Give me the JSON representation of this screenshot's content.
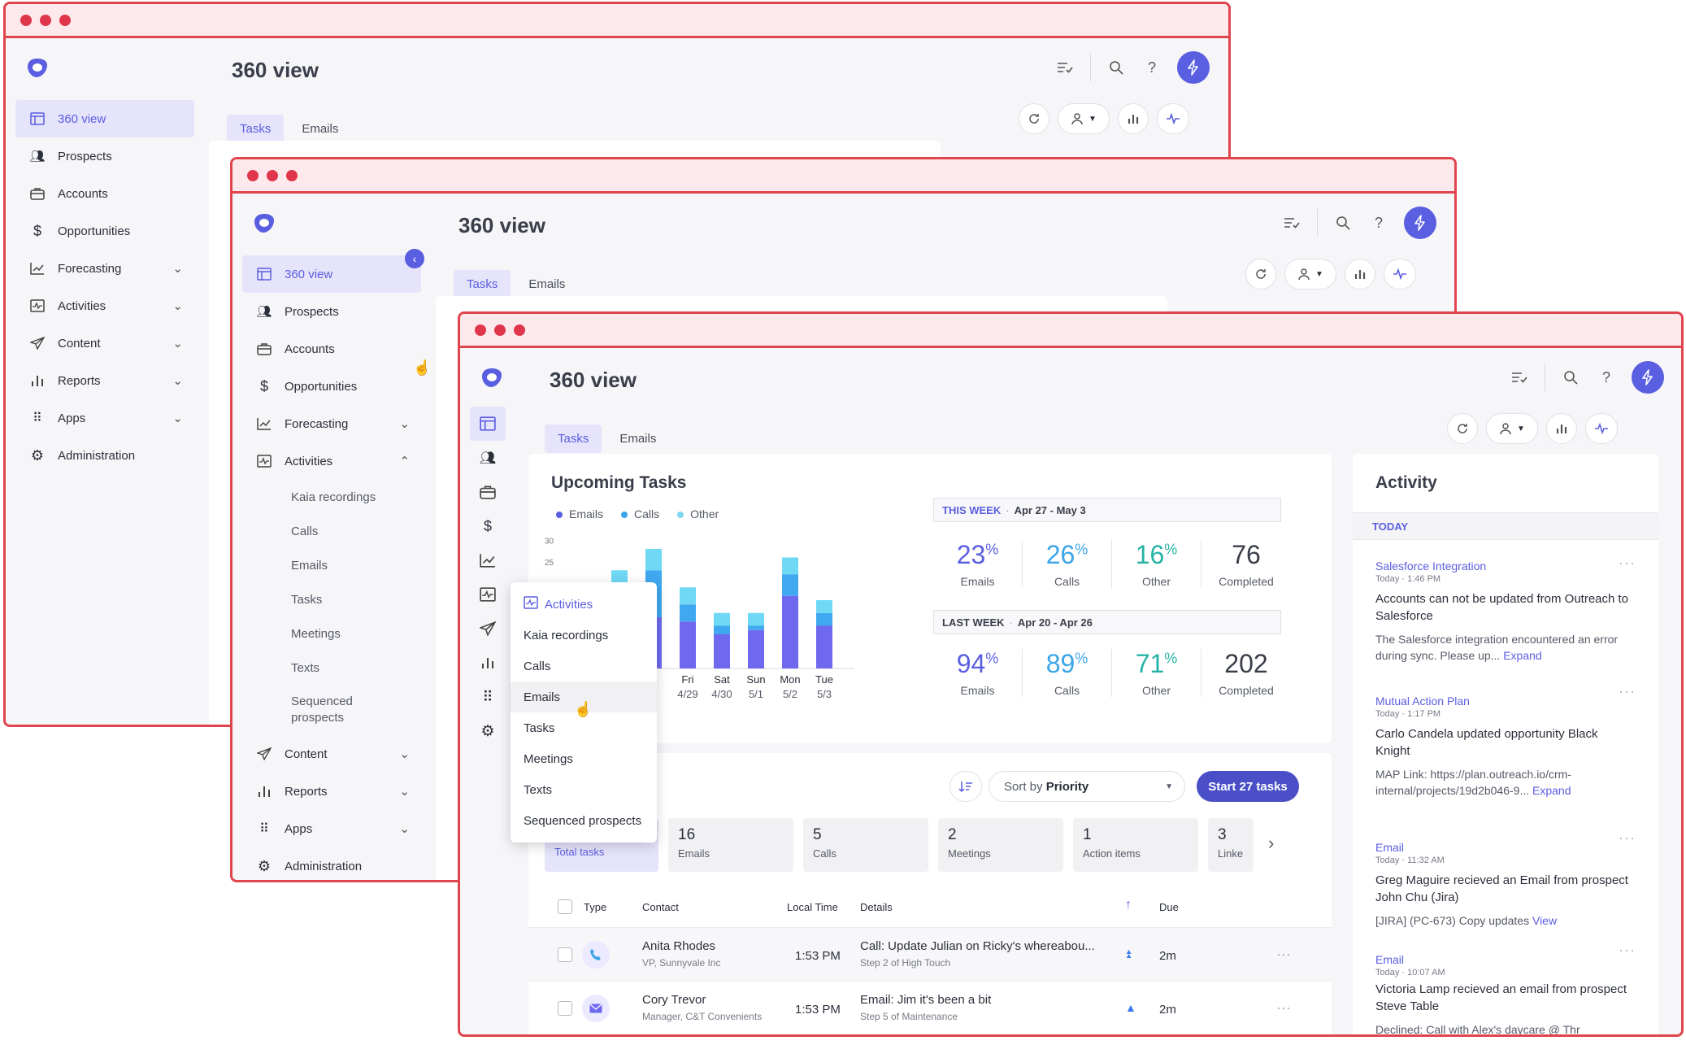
{
  "page_title": "360 view",
  "tabs": [
    "Tasks",
    "Emails"
  ],
  "sidebar": {
    "items": [
      {
        "label": "360 view"
      },
      {
        "label": "Prospects"
      },
      {
        "label": "Accounts"
      },
      {
        "label": "Opportunities"
      },
      {
        "label": "Forecasting"
      },
      {
        "label": "Activities"
      },
      {
        "label": "Content"
      },
      {
        "label": "Reports"
      },
      {
        "label": "Apps"
      },
      {
        "label": "Administration"
      }
    ],
    "activities_sub": [
      "Kaia recordings",
      "Calls",
      "Emails",
      "Tasks",
      "Meetings",
      "Texts",
      "Sequenced prospects"
    ]
  },
  "flyout": {
    "title": "Activities",
    "items": [
      "Kaia recordings",
      "Calls",
      "Emails",
      "Tasks",
      "Meetings",
      "Texts",
      "Sequenced prospects"
    ]
  },
  "upcoming": {
    "title": "Upcoming Tasks",
    "legend": [
      "Emails",
      "Calls",
      "Other"
    ],
    "this_week": {
      "label": "THIS WEEK",
      "range": "Apr 27 - May 3",
      "stats": [
        {
          "value": "23",
          "unit": "%",
          "label": "Emails",
          "color": "#5a5ee0"
        },
        {
          "value": "26",
          "unit": "%",
          "label": "Calls",
          "color": "#3aa5e8"
        },
        {
          "value": "16",
          "unit": "%",
          "label": "Other",
          "color": "#25b3a6"
        },
        {
          "value": "76",
          "unit": "",
          "label": "Completed",
          "color": "#3a3e4a"
        }
      ]
    },
    "last_week": {
      "label": "LAST WEEK",
      "range": "Apr 20 - Apr 26",
      "stats": [
        {
          "value": "94",
          "unit": "%",
          "label": "Emails",
          "color": "#5a5ee0"
        },
        {
          "value": "89",
          "unit": "%",
          "label": "Calls",
          "color": "#3aa5e8"
        },
        {
          "value": "71",
          "unit": "%",
          "label": "Other",
          "color": "#25b3a6"
        },
        {
          "value": "202",
          "unit": "",
          "label": "Completed",
          "color": "#3a3e4a"
        }
      ]
    }
  },
  "chart_data": {
    "type": "bar",
    "stacked": true,
    "y_ticks": [
      "30",
      "25"
    ],
    "categories": [
      {
        "day": "",
        "date": ""
      },
      {
        "day": "",
        "date": ""
      },
      {
        "day": "",
        "date": ""
      },
      {
        "day": "Fri",
        "date": "4/29"
      },
      {
        "day": "Sat",
        "date": "4/30"
      },
      {
        "day": "Sun",
        "date": "5/1"
      },
      {
        "day": "Mon",
        "date": "5/2"
      },
      {
        "day": "Tue",
        "date": "5/3"
      }
    ],
    "series": [
      {
        "name": "Emails",
        "color": "#6e69ee",
        "values": [
          8,
          14,
          12,
          11,
          8,
          9,
          17,
          10
        ]
      },
      {
        "name": "Calls",
        "color": "#40a8f0",
        "values": [
          2,
          4,
          11,
          4,
          2,
          1,
          5,
          3
        ]
      },
      {
        "name": "Other",
        "color": "#6fd8f4",
        "values": [
          4,
          5,
          5,
          4,
          3,
          3,
          4,
          3
        ]
      }
    ],
    "ylim": [
      0,
      32
    ]
  },
  "task_toolbar": {
    "sort_prefix": "Sort by",
    "sort_value": "Priority",
    "start_button": "Start 27 tasks"
  },
  "segments": [
    {
      "n": "",
      "l": "Total tasks"
    },
    {
      "n": "16",
      "l": "Emails"
    },
    {
      "n": "5",
      "l": "Calls"
    },
    {
      "n": "2",
      "l": "Meetings"
    },
    {
      "n": "1",
      "l": "Action items"
    },
    {
      "n": "3",
      "l": "Linke"
    }
  ],
  "table": {
    "headers": {
      "type": "Type",
      "contact": "Contact",
      "local_time": "Local Time",
      "details": "Details",
      "due": "Due"
    },
    "rows": [
      {
        "name": "Anita Rhodes",
        "sub": "VP, Sunnyvale Inc",
        "time": "1:53 PM",
        "detail": "Call: Update Julian on Ricky's whereabou...",
        "step": "Step 2 of High Touch",
        "due": "2m",
        "kind": "call"
      },
      {
        "name": "Cory Trevor",
        "sub": "Manager, C&T Convenients",
        "time": "1:53 PM",
        "detail": "Email: Jim it's been a bit",
        "step": "Step 5 of Maintenance",
        "due": "2m",
        "kind": "email"
      }
    ]
  },
  "activity": {
    "title": "Activity",
    "section": "TODAY",
    "items": [
      {
        "src": "Salesforce Integration",
        "time": "Today · 1:46 PM",
        "head": "Accounts can not be updated from Outreach to Salesforce",
        "body": "The Salesforce integration encountered an error during sync. Please up...",
        "link": "Expand"
      },
      {
        "src": "Mutual Action Plan",
        "time": "Today · 1:17 PM",
        "head": "Carlo Candela updated opportunity Black Knight",
        "body": "MAP Link: https://plan.outreach.io/crm-internal/projects/19d2b046-9...",
        "link": "Expand"
      },
      {
        "src": "Email",
        "time": "Today · 11:32 AM",
        "head": "Greg Maguire recieved an Email from prospect John Chu (Jira)",
        "body": "[JIRA] (PC-673) Copy updates",
        "link": "View"
      },
      {
        "src": "Email",
        "time": "Today · 10:07 AM",
        "head": "Victoria Lamp recieved an email from prospect Steve Table",
        "body": "Declined: Call with Alex's daycare @ Thr",
        "link": ""
      }
    ]
  }
}
